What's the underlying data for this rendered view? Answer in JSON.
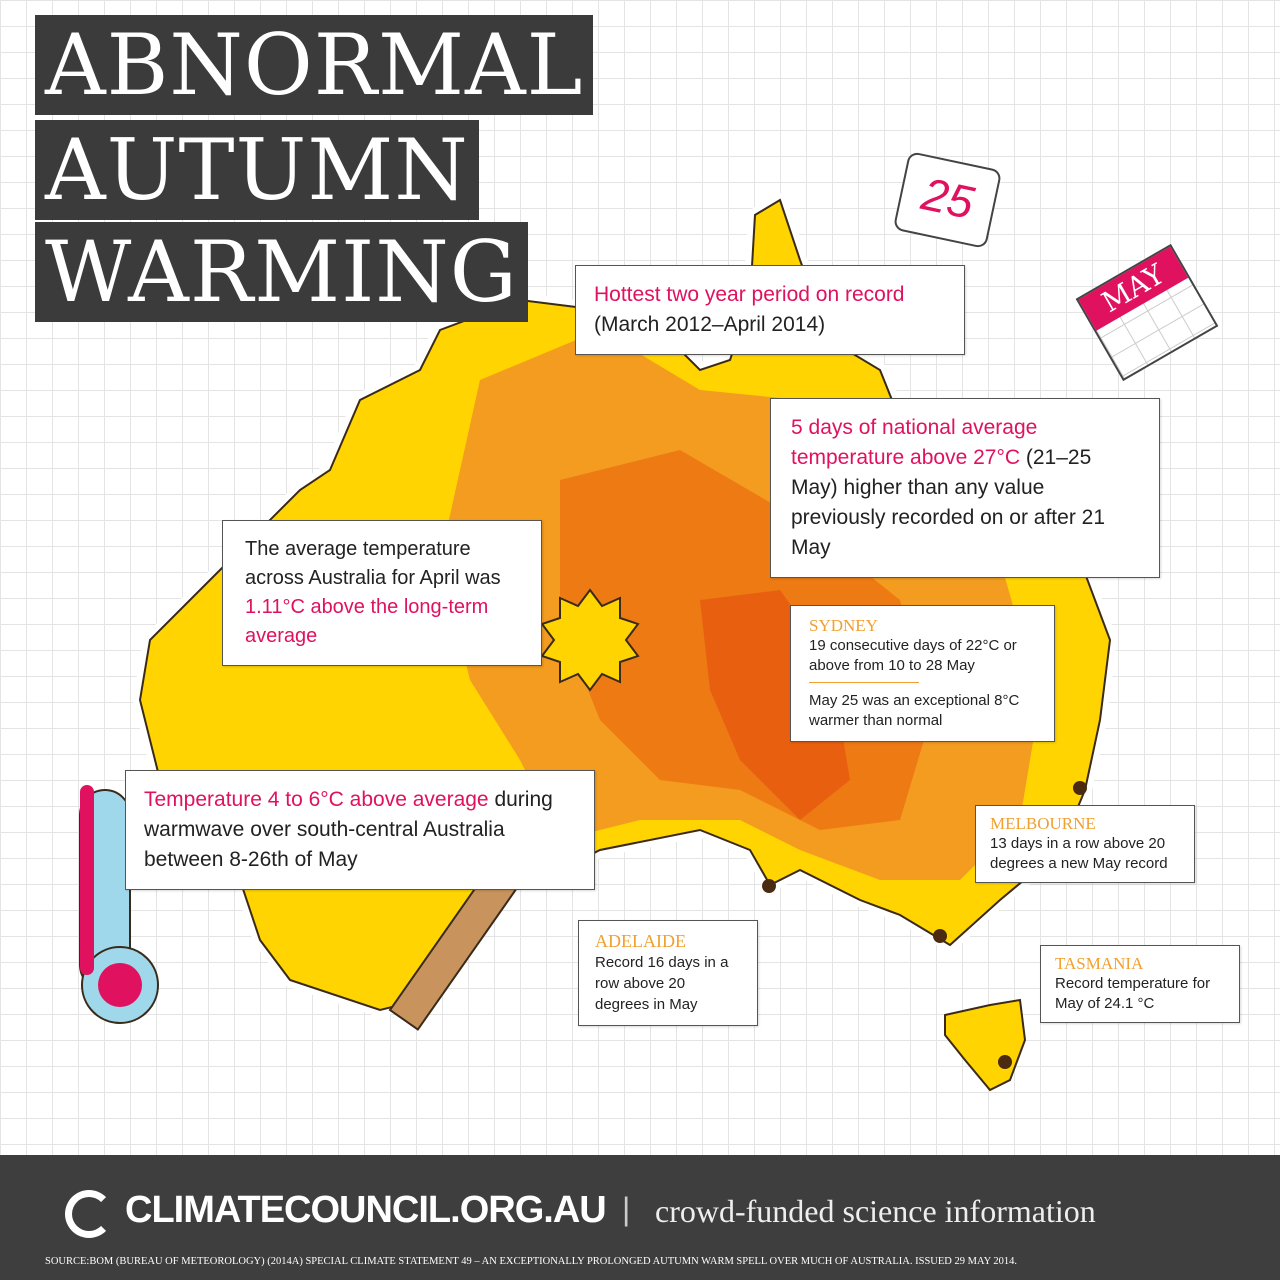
{
  "title": {
    "line1": "ABNORMAL",
    "line2": "AUTUMN",
    "line3": "WARMING"
  },
  "calendar_day": {
    "number": "25",
    "icon": "calendar-page-icon"
  },
  "calendar_month": {
    "label": "MAY",
    "icon": "calendar-icon"
  },
  "callouts": {
    "hottest": {
      "highlight": "Hottest two year period on record",
      "text": " (March 2012–April 2014)"
    },
    "five_days": {
      "highlight": "5 days of national average temperature above 27°C",
      "text": " (21–25 May) higher than any value previously recorded on or after 21 May"
    },
    "april": {
      "text": "The average temperature across Australia for April was ",
      "highlight": "1.11°C above the long-term average"
    },
    "warmwave": {
      "highlight": "Temperature 4 to 6°C above average",
      "text": " during warmwave over south-central Australia between 8-26th of May"
    },
    "sydney": {
      "city": "SYDNEY",
      "text1": "19 consecutive days of 22°C or above from 10 to 28 May",
      "text2": "May 25 was an exceptional 8°C warmer than normal"
    },
    "adelaide": {
      "city": "ADELAIDE",
      "text": "Record 16 days in a row above 20 degrees in May"
    },
    "melbourne": {
      "city": "MELBOURNE",
      "text": "13 days in a row above 20 degrees a new May record"
    },
    "tasmania": {
      "city": "TASMANIA",
      "text": "Record temperature for May of 24.1 °C"
    }
  },
  "footer": {
    "brand": "CLIMATECOUNCIL.ORG.AU",
    "separator": "|",
    "tagline": "crowd-funded science information",
    "source": "SOURCE:BOM (BUREAU OF METEOROLOGY) (2014A) SPECIAL CLIMATE STATEMENT 49 – AN EXCEPTIONALLY PROLONGED AUTUMN WARM SPELL OVER MUCH OF AUSTRALIA. ISSUED 29 MAY 2014."
  },
  "colors": {
    "dark": "#3b3b3b",
    "pink": "#e0115f",
    "label_orange": "#f0a030",
    "map_yellow": "#ffd400",
    "map_orange": "#f39c1f",
    "map_deep": "#e8600f"
  }
}
